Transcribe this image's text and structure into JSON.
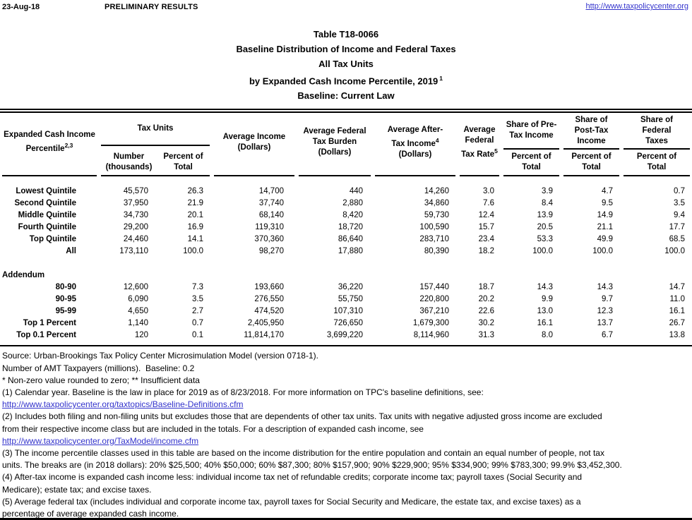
{
  "meta_bar": {
    "date": "23-Aug-18",
    "status": "PRELIMINARY RESULTS",
    "site_url": "http://www.taxpolicycenter.org"
  },
  "title_block": {
    "line1": "Table T18-0066",
    "line2": "Baseline Distribution of Income and Federal Taxes",
    "line3": "All Tax Units",
    "line4": "by Expanded Cash Income Percentile, 2019",
    "line4_sup": "1",
    "line5": "Baseline: Current Law"
  },
  "table": {
    "header": {
      "expanded": {
        "l1": "Expanded Cash Income",
        "l2": "Percentile",
        "sup": "2,3"
      },
      "tax_units": {
        "group": "Tax Units",
        "number": {
          "l1": "Number",
          "l2": "(thousands)"
        },
        "percent": {
          "l1": "Percent of",
          "l2": "Total"
        }
      },
      "avg_income": {
        "l1": "Average Income",
        "l2": "(Dollars)"
      },
      "avg_burden": {
        "l1": "Average Federal",
        "l2": "Tax Burden",
        "l3": "(Dollars)"
      },
      "avg_after": {
        "l1": "Average After-",
        "l2": "Tax Income",
        "sup": "4",
        "l3": "(Dollars)"
      },
      "avg_rate": {
        "l1": "Average",
        "l2": "Federal",
        "l3": "Tax Rate",
        "sup": "5"
      },
      "share_pre": {
        "g1": "Share of Pre-",
        "g2": "Tax Income",
        "p1": "Percent of",
        "p2": "Total"
      },
      "share_post": {
        "g1": "Share of",
        "g2": "Post-Tax",
        "g3": "Income",
        "p1": "Percent of",
        "p2": "Total"
      },
      "share_fed": {
        "g1": "Share of",
        "g2": "Federal",
        "g3": "Taxes",
        "p1": "Percent of",
        "p2": "Total"
      }
    },
    "main_rows": [
      {
        "label": "Lowest Quintile",
        "cells": [
          "45,570",
          "26.3",
          "14,700",
          "440",
          "14,260",
          "3.0",
          "3.9",
          "4.7",
          "0.7"
        ]
      },
      {
        "label": "Second Quintile",
        "cells": [
          "37,950",
          "21.9",
          "37,740",
          "2,880",
          "34,860",
          "7.6",
          "8.4",
          "9.5",
          "3.5"
        ]
      },
      {
        "label": "Middle Quintile",
        "cells": [
          "34,730",
          "20.1",
          "68,140",
          "8,420",
          "59,730",
          "12.4",
          "13.9",
          "14.9",
          "9.4"
        ]
      },
      {
        "label": "Fourth Quintile",
        "cells": [
          "29,200",
          "16.9",
          "119,310",
          "18,720",
          "100,590",
          "15.7",
          "20.5",
          "21.1",
          "17.7"
        ]
      },
      {
        "label": "Top Quintile",
        "cells": [
          "24,460",
          "14.1",
          "370,360",
          "86,640",
          "283,710",
          "23.4",
          "53.3",
          "49.9",
          "68.5"
        ]
      },
      {
        "label": "All",
        "cells": [
          "173,110",
          "100.0",
          "98,270",
          "17,880",
          "80,390",
          "18.2",
          "100.0",
          "100.0",
          "100.0"
        ]
      }
    ],
    "addendum_label": "Addendum",
    "addendum_rows": [
      {
        "label": "80-90",
        "cells": [
          "12,600",
          "7.3",
          "193,660",
          "36,220",
          "157,440",
          "18.7",
          "14.3",
          "14.3",
          "14.7"
        ]
      },
      {
        "label": "90-95",
        "cells": [
          "6,090",
          "3.5",
          "276,550",
          "55,750",
          "220,800",
          "20.2",
          "9.9",
          "9.7",
          "11.0"
        ]
      },
      {
        "label": "95-99",
        "cells": [
          "4,650",
          "2.7",
          "474,520",
          "107,310",
          "367,210",
          "22.6",
          "13.0",
          "12.3",
          "16.1"
        ]
      },
      {
        "label": "Top 1 Percent",
        "cells": [
          "1,140",
          "0.7",
          "2,405,950",
          "726,650",
          "1,679,300",
          "30.2",
          "16.1",
          "13.7",
          "26.7"
        ]
      },
      {
        "label": "Top 0.1 Percent",
        "cells": [
          "120",
          "0.1",
          "11,814,170",
          "3,699,220",
          "8,114,960",
          "31.3",
          "8.0",
          "6.7",
          "13.8"
        ]
      }
    ]
  },
  "footnotes": [
    {
      "text": "Source: Urban-Brookings Tax Policy Center Microsimulation Model (version 0718-1).",
      "link": false
    },
    {
      "text": "Number of AMT Taxpayers (millions).  Baseline: 0.2",
      "link": false
    },
    {
      "text": "* Non-zero value rounded to zero; ** Insufficient data",
      "link": false
    },
    {
      "text": "(1) Calendar year. Baseline is the law in place for 2019 as of 8/23/2018. For more information on TPC's baseline definitions, see:",
      "link": false
    },
    {
      "text": "http://www.taxpolicycenter.org/taxtopics/Baseline-Definitions.cfm",
      "link": true
    },
    {
      "text": "(2) Includes both filing and non-filing units but excludes those that are dependents of other tax units. Tax units with negative adjusted gross income are excluded",
      "link": false
    },
    {
      "text": "from their respective income class but are included in the totals. For a description of expanded cash income, see",
      "link": false
    },
    {
      "text": "http://www.taxpolicycenter.org/TaxModel/income.cfm",
      "link": true
    },
    {
      "text": "(3) The income percentile classes used in this table are based on the income distribution for the entire population and contain an equal number of people, not tax",
      "link": false
    },
    {
      "text": "units. The breaks are (in 2018 dollars): 20% $25,500; 40% $50,000; 60% $87,300; 80% $157,900; 90% $229,900; 95% $334,900; 99% $783,300; 99.9% $3,452,300.",
      "link": false
    },
    {
      "text": "(4) After-tax income is expanded cash income less: individual income tax net of refundable credits; corporate income tax; payroll taxes (Social Security and",
      "link": false
    },
    {
      "text": "Medicare); estate tax; and excise taxes.",
      "link": false
    },
    {
      "text": "(5) Average federal tax (includes individual and corporate income tax, payroll taxes for Social Security and Medicare, the estate tax, and excise taxes) as a",
      "link": false
    },
    {
      "text": "percentage of average expanded cash income.",
      "link": false
    }
  ],
  "colors": {
    "link_blue": "#3333cc",
    "text": "#000000",
    "background": "#ffffff"
  }
}
